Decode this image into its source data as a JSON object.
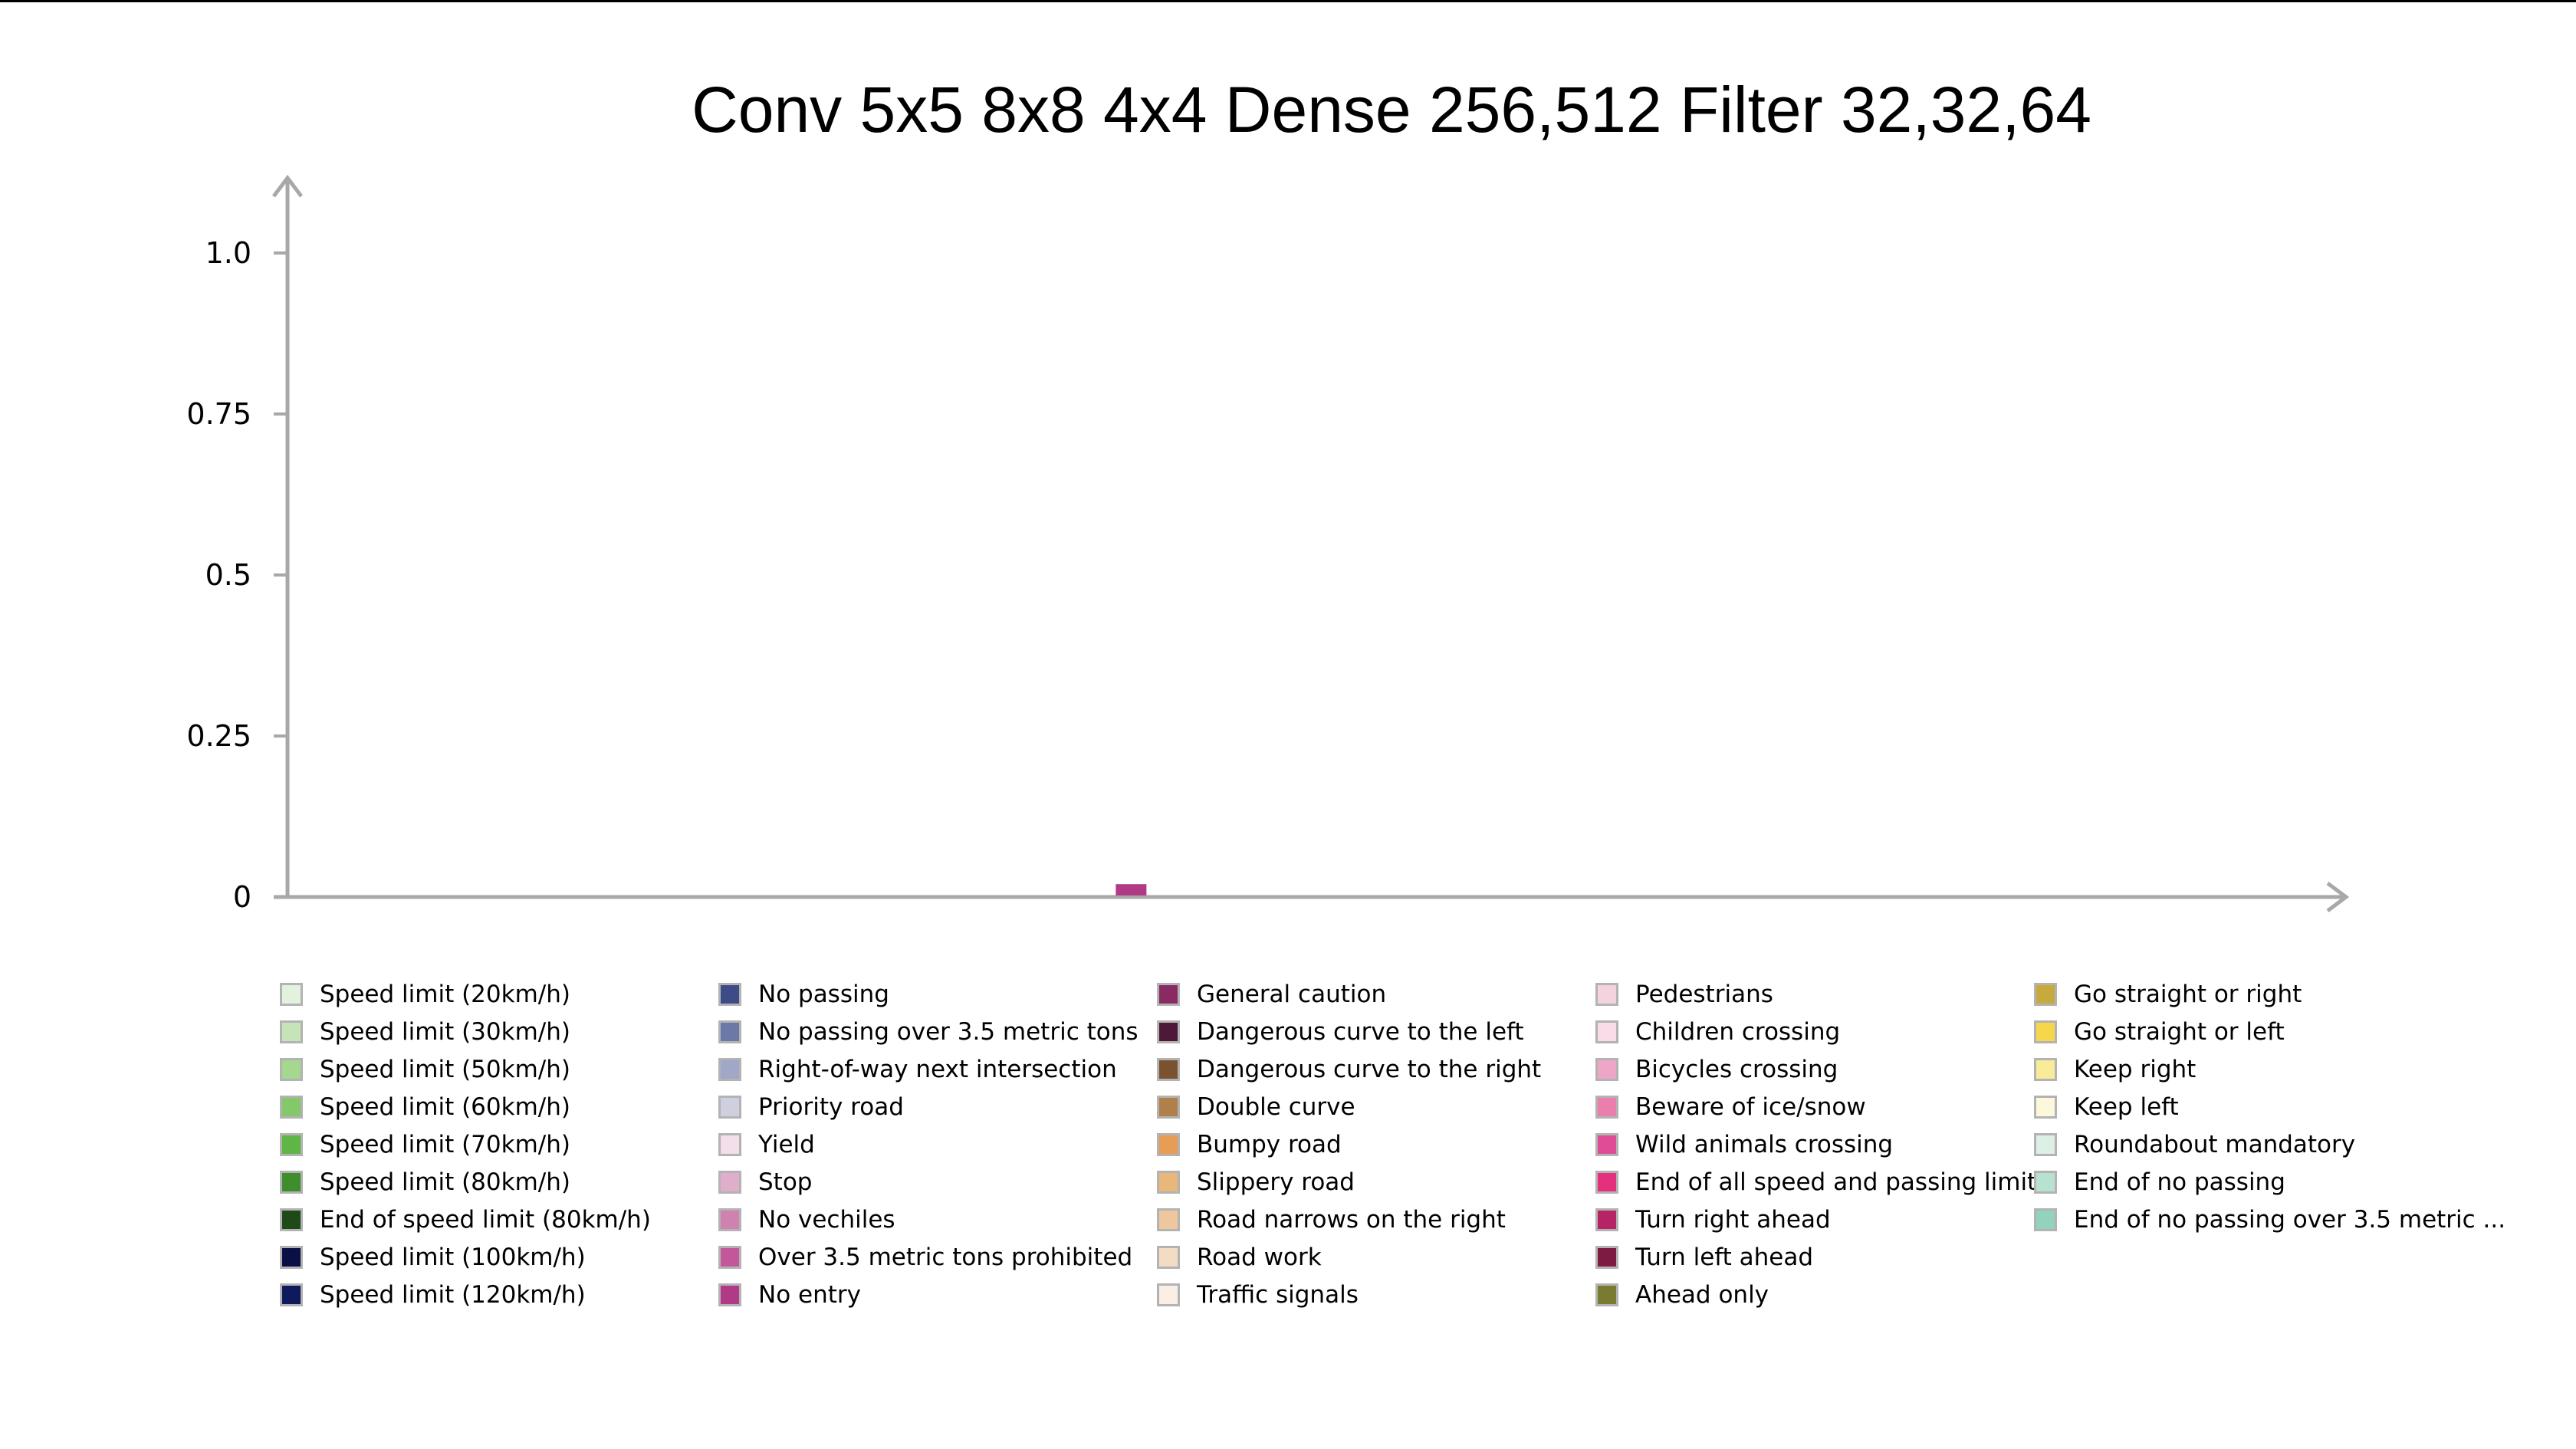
{
  "chart_data": {
    "type": "bar",
    "title": "Conv 5x5 8x8 4x4 Dense 256,512 Filter 32,32,64",
    "xlabel": "",
    "ylabel": "",
    "ylim": [
      0,
      1.1
    ],
    "y_ticks": [
      {
        "value": 0,
        "label": "0"
      },
      {
        "value": 0.25,
        "label": "0.25"
      },
      {
        "value": 0.5,
        "label": "0.5"
      },
      {
        "value": 0.75,
        "label": "0.75"
      },
      {
        "value": 1.0,
        "label": "1.0"
      }
    ],
    "grid": false,
    "legend_placement": "bottom",
    "categories": [
      "Speed limit (20km/h)",
      "Speed limit (30km/h)",
      "Speed limit (50km/h)",
      "Speed limit (60km/h)",
      "Speed limit (70km/h)",
      "Speed limit (80km/h)",
      "End of speed limit (80km/h)",
      "Speed limit (100km/h)",
      "Speed limit (120km/h)",
      "No passing",
      "No passing over 3.5 metric tons",
      "Right-of-way next intersection",
      "Priority road",
      "Yield",
      "Stop",
      "No vechiles",
      "Over 3.5 metric tons prohibited",
      "No entry",
      "General caution",
      "Dangerous curve to the left",
      "Dangerous curve to the right",
      "Double curve",
      "Bumpy road",
      "Slippery road",
      "Road narrows on the right",
      "Road work",
      "Traffic signals",
      "Pedestrians",
      "Children crossing",
      "Bicycles crossing",
      "Beware of ice/snow",
      "Wild animals crossing",
      "End of all speed and passing limits",
      "Turn right ahead",
      "Turn left ahead",
      "Ahead only",
      "Go straight or right",
      "Go straight or left",
      "Keep right",
      "Keep left",
      "Roundabout mandatory",
      "End of no passing",
      "End of no passing over 3.5 metric ..."
    ],
    "colors": [
      "#e2f2dc",
      "#c5e4b7",
      "#a5d78e",
      "#84c86a",
      "#5fb545",
      "#3f8e2d",
      "#1f4a17",
      "#0a1045",
      "#0e1a5c",
      "#3d4c86",
      "#6b78a8",
      "#a0a7c7",
      "#ced0df",
      "#f3dfe9",
      "#dfaecb",
      "#cf82b0",
      "#c25899",
      "#b13a86",
      "#8a2a63",
      "#4e1838",
      "#7a5230",
      "#b0804a",
      "#e79d55",
      "#e8b779",
      "#eec79e",
      "#f4dcc4",
      "#fbeee4",
      "#f4d2de",
      "#f8dde8",
      "#eea6c6",
      "#ea7fae",
      "#e04c95",
      "#e5307e",
      "#b72465",
      "#7e1b42",
      "#7a7a33",
      "#c7aa3e",
      "#f6d74c",
      "#f8ec98",
      "#fdf8dc",
      "#dcf0e6",
      "#b8e2d0",
      "#93d3bd"
    ],
    "values": [
      0,
      0,
      0,
      0,
      0,
      0,
      0,
      0,
      0,
      0,
      0,
      0,
      0,
      0,
      0,
      0,
      0,
      0.02,
      0,
      0,
      0,
      0,
      0,
      0,
      0,
      0,
      0,
      0,
      0,
      0,
      0,
      0,
      0,
      0,
      0,
      0,
      0,
      0,
      0,
      0,
      0,
      0,
      0
    ]
  }
}
